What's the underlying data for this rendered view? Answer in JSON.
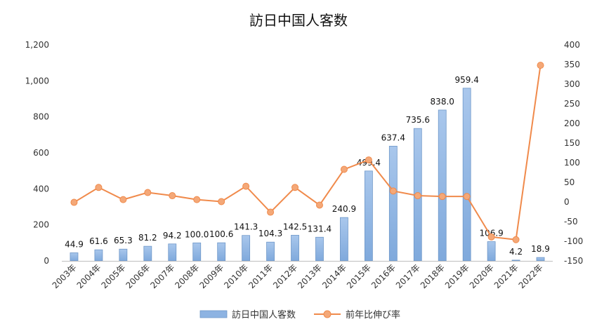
{
  "chart_data": {
    "type": "bar+line",
    "title": "訪日中国人客数",
    "categories": [
      "2003年",
      "2004年",
      "2005年",
      "2006年",
      "2007年",
      "2008年",
      "2009年",
      "2010年",
      "2011年",
      "2012年",
      "2013年",
      "2014年",
      "2015年",
      "2016年",
      "2017年",
      "2018年",
      "2019年",
      "2020年",
      "2021年",
      "2022年"
    ],
    "bar_series": {
      "name": "訪日中国人客数",
      "color": "#8db3e2",
      "values": [
        44.9,
        61.6,
        65.3,
        81.2,
        94.2,
        100.0,
        100.6,
        141.3,
        104.3,
        142.5,
        131.4,
        240.9,
        499.4,
        637.4,
        735.6,
        838.0,
        959.4,
        106.9,
        4.2,
        18.9
      ],
      "labels": [
        "44.9",
        "61.6",
        "65.3",
        "81.2",
        "94.2",
        "100.0",
        "100.6",
        "141.3",
        "104.3",
        "142.5",
        "131.4",
        "240.9",
        "499.4",
        "637.4",
        "735.6",
        "838.0",
        "959.4",
        "106.9",
        "4.2",
        "18.9"
      ]
    },
    "line_series": {
      "name": "前年比伸び率",
      "color": "#f08a4b",
      "values": [
        -1,
        37,
        6,
        24,
        16,
        6,
        1,
        40,
        -26,
        37,
        -8,
        83,
        107,
        28,
        16,
        14,
        14,
        -89,
        -96,
        348
      ]
    },
    "y_left": {
      "min": 0,
      "max": 1200,
      "step": 200,
      "ticks": [
        "0",
        "200",
        "400",
        "600",
        "800",
        "1,000",
        "1,200"
      ]
    },
    "y_right": {
      "min": -150,
      "max": 400,
      "step": 50,
      "ticks": [
        "-150",
        "-100",
        "-50",
        "0",
        "50",
        "100",
        "150",
        "200",
        "250",
        "300",
        "350",
        "400"
      ]
    },
    "grid": false,
    "legend_position": "bottom"
  }
}
